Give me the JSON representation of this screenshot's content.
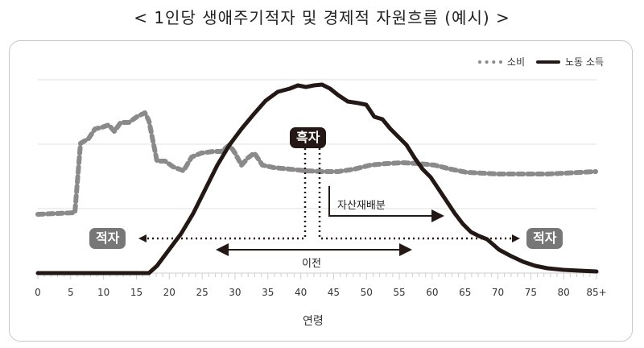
{
  "title": "< 1인당 생애주기적자 및 경제적 자원흐름 (예시) >",
  "legend": {
    "consumption": "소비",
    "labor_income": "노동 소득"
  },
  "annotations": {
    "surplus": "흑자",
    "deficit_left": "적자",
    "deficit_right": "적자",
    "asset_reallocation": "자산재배분",
    "transfer": "이전"
  },
  "colors": {
    "consumption": "#8a8a8a",
    "labor_income": "#231815",
    "surplus_badge": "#231815",
    "deficit_badge": "#777777",
    "gridline": "#e0e0e0"
  },
  "x_axis": {
    "label": "연령",
    "ticks": [
      "0",
      "5",
      "10",
      "15",
      "20",
      "25",
      "30",
      "35",
      "40",
      "45",
      "50",
      "55",
      "60",
      "65",
      "70",
      "75",
      "80",
      "85+"
    ]
  },
  "chart_data": {
    "type": "line",
    "title": "< 1인당 생애주기적자 및 경제적 자원흐름 (예시) >",
    "xlabel": "연령",
    "ylabel": "",
    "x": [
      0,
      5,
      10,
      15,
      20,
      25,
      30,
      35,
      40,
      45,
      50,
      55,
      60,
      65,
      70,
      75,
      80,
      85
    ],
    "xlim": [
      0,
      85
    ],
    "ylim": [
      0,
      3
    ],
    "grid": {
      "horizontal": true,
      "vertical": false
    },
    "legend_position": "top-right",
    "series": [
      {
        "name": "소비",
        "style": "dashed",
        "color": "#8a8a8a",
        "values": [
          0.92,
          0.95,
          2.1,
          2.4,
          1.7,
          1.85,
          1.65,
          1.63,
          1.6,
          1.6,
          1.65,
          1.68,
          1.65,
          1.58,
          1.54,
          1.54,
          1.54,
          1.57
        ]
      },
      {
        "name": "노동 소득",
        "style": "solid",
        "color": "#231815",
        "values": [
          0,
          0,
          0,
          0,
          0.35,
          1.3,
          2.2,
          2.8,
          2.92,
          2.95,
          2.5,
          1.95,
          1.25,
          0.6,
          0.3,
          0.12,
          0.05,
          0.02
        ]
      }
    ],
    "annotations": [
      {
        "text": "흑자",
        "x": 42,
        "type": "label-box-dark"
      },
      {
        "text": "적자",
        "x": 10,
        "type": "label-box-gray",
        "arrow": "left"
      },
      {
        "text": "적자",
        "x": 77,
        "type": "label-box-gray",
        "arrow": "right"
      },
      {
        "text": "자산재배분",
        "x": 45,
        "x_end": 62,
        "type": "arrow-right"
      },
      {
        "text": "이전",
        "x": 27,
        "x_end": 57,
        "type": "double-arrow"
      }
    ]
  }
}
